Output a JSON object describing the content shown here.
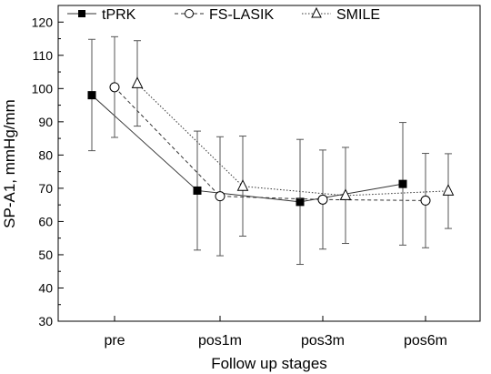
{
  "chart_data": {
    "type": "line",
    "xlabel": "Follow up stages",
    "ylabel": "SP-A1, mmHg/mm",
    "categories": [
      "pre",
      "pos1m",
      "pos3m",
      "pos6m"
    ],
    "ylim": [
      30,
      125
    ],
    "yticks": [
      30,
      40,
      50,
      60,
      70,
      80,
      90,
      100,
      110,
      120
    ],
    "grid": false,
    "legend_position": "top",
    "series": [
      {
        "name": "tPRK",
        "marker": "square-filled",
        "line_style": "solid",
        "values": [
          98.0,
          69.3,
          65.9,
          71.3
        ],
        "error_low": [
          81.3,
          51.4,
          47.1,
          52.9
        ],
        "error_high": [
          114.8,
          87.2,
          84.7,
          89.8
        ]
      },
      {
        "name": "FS-LASIK",
        "marker": "circle-open",
        "line_style": "dashed",
        "values": [
          100.4,
          67.6,
          66.6,
          66.3
        ],
        "error_low": [
          85.3,
          49.7,
          51.7,
          52.1
        ],
        "error_high": [
          115.6,
          85.5,
          81.5,
          80.5
        ]
      },
      {
        "name": "SMILE",
        "marker": "triangle-open",
        "line_style": "dotted",
        "values": [
          101.5,
          70.6,
          67.8,
          69.2
        ],
        "error_low": [
          88.7,
          55.6,
          53.4,
          57.9
        ],
        "error_high": [
          114.4,
          85.7,
          82.3,
          80.4
        ]
      }
    ]
  }
}
